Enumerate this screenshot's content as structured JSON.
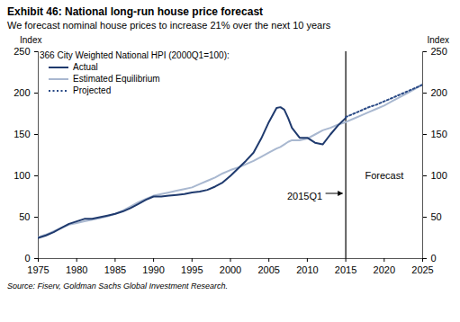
{
  "chart_data": {
    "type": "line",
    "title": "Exhibit 46: National long-run house price forecast",
    "subtitle": "We forecast nominal house prices to increase 21% over the next 10 years",
    "ylabel": "Index",
    "y2label": "Index",
    "legend_title": "366 City Weighted National HPI (2000Q1=100):",
    "source": "Source: Fiserv, Goldman Sachs Global Investment Research.",
    "x": [
      1975,
      1976,
      1977,
      1978,
      1979,
      1980,
      1981,
      1982,
      1983,
      1984,
      1985,
      1986,
      1987,
      1988,
      1989,
      1990,
      1991,
      1992,
      1993,
      1994,
      1995,
      1996,
      1997,
      1998,
      1999,
      2000,
      2001,
      2002,
      2003,
      2004,
      2005,
      2006,
      2006.5,
      2007,
      2007.5,
      2008,
      2009,
      2010,
      2011,
      2012,
      2013,
      2014,
      2015,
      2016,
      2017,
      2018,
      2019,
      2020,
      2021,
      2022,
      2023,
      2024,
      2025
    ],
    "series": [
      {
        "name": "Actual",
        "color": "#1f3a6e",
        "line_style": "solid",
        "values": [
          25,
          28,
          32,
          37,
          42,
          45,
          48,
          48,
          50,
          52,
          54,
          57,
          61,
          66,
          71,
          75,
          75,
          76,
          77,
          78,
          80,
          81,
          83,
          87,
          92,
          100,
          109,
          118,
          128,
          145,
          165,
          182,
          183,
          180,
          170,
          158,
          146,
          146,
          140,
          138,
          150,
          161,
          170,
          null,
          null,
          null,
          null,
          null,
          null,
          null,
          null,
          null,
          null
        ]
      },
      {
        "name": "Estimated Equilibrium",
        "color": "#a9b8d0",
        "line_style": "solid",
        "values": [
          26,
          29,
          33,
          37,
          41,
          43,
          45,
          47,
          49,
          51,
          54,
          58,
          63,
          68,
          72,
          76,
          78,
          80,
          82,
          84,
          86,
          90,
          94,
          98,
          103,
          107,
          110,
          114,
          118,
          123,
          128,
          133,
          135,
          138,
          141,
          143,
          143,
          145,
          150,
          155,
          158,
          162,
          165,
          169,
          173,
          177,
          181,
          185,
          190,
          195,
          200,
          205,
          211
        ]
      },
      {
        "name": "Projected",
        "color": "#2a4a86",
        "line_style": "dotted",
        "values": [
          null,
          null,
          null,
          null,
          null,
          null,
          null,
          null,
          null,
          null,
          null,
          null,
          null,
          null,
          null,
          null,
          null,
          null,
          null,
          null,
          null,
          null,
          null,
          null,
          null,
          null,
          null,
          null,
          null,
          null,
          null,
          null,
          null,
          null,
          null,
          null,
          null,
          null,
          null,
          null,
          null,
          null,
          171,
          175,
          179,
          183,
          186,
          190,
          194,
          198,
          202,
          206,
          210
        ]
      }
    ],
    "xlim": [
      1975,
      2025
    ],
    "xticks": [
      1975,
      1980,
      1985,
      1990,
      1995,
      2000,
      2005,
      2010,
      2015,
      2020,
      2025
    ],
    "ylim": [
      0,
      250
    ],
    "yticks": [
      0,
      50,
      100,
      150,
      200,
      250
    ],
    "y2lim": [
      0,
      250
    ],
    "y2ticks": [
      0,
      50,
      100,
      150,
      200,
      250
    ],
    "annotations": [
      {
        "text": "2015Q1",
        "x": 2015,
        "y": 75
      },
      {
        "text": "Forecast",
        "x": 2020,
        "y": 100
      }
    ],
    "legend": "top-left",
    "grid": false
  }
}
